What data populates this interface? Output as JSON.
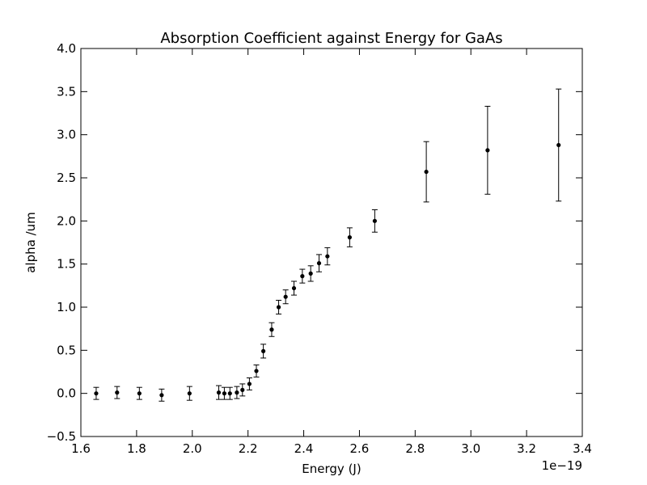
{
  "chart_data": {
    "type": "scatter",
    "title": "Absorption Coefficient against Energy for GaAs",
    "xlabel": "Energy (J)",
    "ylabel": "alpha /um",
    "x_offset_label": "1e−19",
    "xlim": [
      1.6,
      3.4
    ],
    "ylim": [
      -0.5,
      4.0
    ],
    "x_ticks": [
      "1.6",
      "1.8",
      "2.0",
      "2.2",
      "2.4",
      "2.6",
      "2.8",
      "3.0",
      "3.2",
      "3.4"
    ],
    "y_ticks": [
      "−0.5",
      "0.0",
      "0.5",
      "1.0",
      "1.5",
      "2.0",
      "2.5",
      "3.0",
      "3.5",
      "4.0"
    ],
    "grid": false,
    "marker_color": "#000000",
    "series": [
      {
        "x": [
          1.655,
          1.73,
          1.81,
          1.89,
          1.99,
          2.095,
          2.115,
          2.135,
          2.16,
          2.18,
          2.205,
          2.23,
          2.255,
          2.285,
          2.31,
          2.335,
          2.365,
          2.395,
          2.425,
          2.455,
          2.485,
          2.565,
          2.655,
          2.84,
          3.06,
          3.315
        ],
        "y": [
          0.0,
          0.01,
          0.0,
          -0.02,
          0.0,
          0.01,
          0.0,
          0.0,
          0.01,
          0.04,
          0.11,
          0.26,
          0.49,
          0.74,
          1.0,
          1.12,
          1.22,
          1.36,
          1.39,
          1.51,
          1.59,
          1.81,
          2.0,
          2.57,
          2.82,
          2.88
        ],
        "yerr": [
          0.07,
          0.07,
          0.07,
          0.07,
          0.08,
          0.08,
          0.07,
          0.07,
          0.07,
          0.07,
          0.07,
          0.07,
          0.08,
          0.08,
          0.08,
          0.08,
          0.08,
          0.08,
          0.09,
          0.1,
          0.1,
          0.11,
          0.13,
          0.35,
          0.51,
          0.65
        ]
      }
    ]
  }
}
